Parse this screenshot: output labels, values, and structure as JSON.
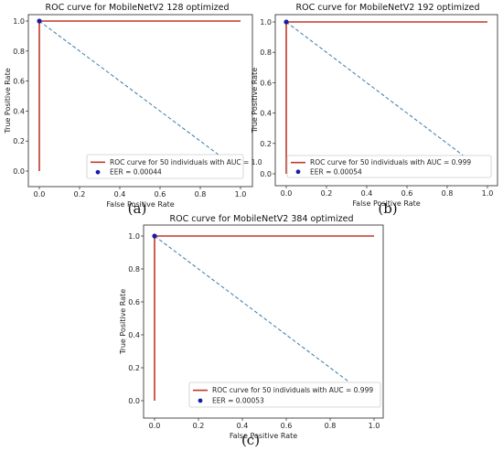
{
  "chart_data": [
    {
      "type": "line",
      "panel": "(a)",
      "title": "ROC curve for MobileNetV2 128 optimized",
      "xlabel": "False Positive Rate",
      "ylabel": "True Positive Rate",
      "xlim": [
        0,
        1
      ],
      "ylim": [
        0,
        1
      ],
      "xticks": [
        "0.0",
        "0.2",
        "0.4",
        "0.6",
        "0.8",
        "1.0"
      ],
      "yticks": [
        "0.0",
        "0.2",
        "0.4",
        "0.6",
        "0.8",
        "1.0"
      ],
      "grid": false,
      "legend_position": "lower right",
      "series": [
        {
          "name": "ROC curve for 50 individuals with AUC = 1.0",
          "x": [
            0,
            0,
            1
          ],
          "y": [
            0,
            1,
            1
          ],
          "color": "#c0392b"
        },
        {
          "name": "",
          "x": [
            0,
            1
          ],
          "y": [
            1,
            0
          ],
          "color": "#3a7ca5"
        }
      ],
      "eer": {
        "label": "EER = 0.00044",
        "x": 0,
        "y": 1,
        "color": "#1a1aa8"
      }
    },
    {
      "type": "line",
      "panel": "(b)",
      "title": "ROC curve for MobileNetV2 192 optimized",
      "xlabel": "False Positive Rate",
      "ylabel": "True Positive Rate",
      "xlim": [
        0,
        1
      ],
      "ylim": [
        0,
        1
      ],
      "xticks": [
        "0.0",
        "0.2",
        "0.4",
        "0.6",
        "0.8",
        "1.0"
      ],
      "yticks": [
        "0.0",
        "0.2",
        "0.4",
        "0.6",
        "0.8",
        "1.0"
      ],
      "grid": false,
      "legend_position": "lower right",
      "series": [
        {
          "name": "ROC curve for 50 individuals with AUC = 0.999",
          "x": [
            0,
            0,
            1
          ],
          "y": [
            0,
            1,
            1
          ],
          "color": "#c0392b"
        },
        {
          "name": "",
          "x": [
            0,
            1
          ],
          "y": [
            1,
            0
          ],
          "color": "#3a7ca5"
        }
      ],
      "eer": {
        "label": "EER = 0.00054",
        "x": 0,
        "y": 1,
        "color": "#1a1aa8"
      }
    },
    {
      "type": "line",
      "panel": "(c)",
      "title": "ROC curve for MobileNetV2 384 optimized",
      "xlabel": "False Positive Rate",
      "ylabel": "True Positive Rate",
      "xlim": [
        0,
        1
      ],
      "ylim": [
        0,
        1
      ],
      "xticks": [
        "0.0",
        "0.2",
        "0.4",
        "0.6",
        "0.8",
        "1.0"
      ],
      "yticks": [
        "0.0",
        "0.2",
        "0.4",
        "0.6",
        "0.8",
        "1.0"
      ],
      "grid": false,
      "legend_position": "lower right",
      "series": [
        {
          "name": "ROC curve for 50 individuals with AUC = 0.999",
          "x": [
            0,
            0,
            1
          ],
          "y": [
            0,
            1,
            1
          ],
          "color": "#c0392b"
        },
        {
          "name": "",
          "x": [
            0,
            1
          ],
          "y": [
            1,
            0
          ],
          "color": "#3a7ca5"
        }
      ],
      "eer": {
        "label": "EER = 0.00053",
        "x": 0,
        "y": 1,
        "color": "#1a1aa8"
      }
    }
  ]
}
